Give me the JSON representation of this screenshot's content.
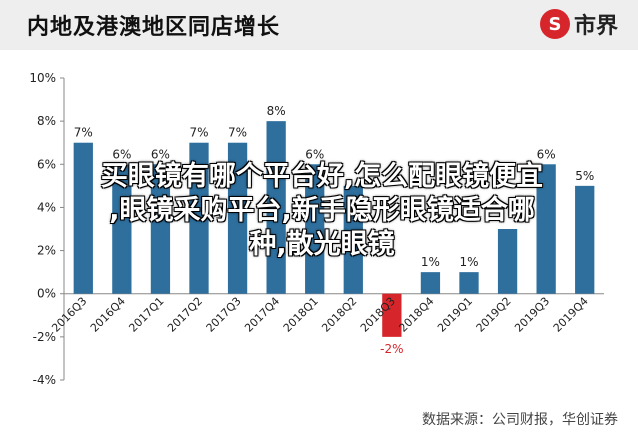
{
  "header": {
    "title": "内地及港澳地区同店增长",
    "logo_mark": "S",
    "logo_text": "市界"
  },
  "overlay_text": {
    "line1": "买眼镜有哪个平台好,怎么配眼镜便宜",
    "line2": ",眼镜采购平台,新手隐形眼镜适合哪",
    "line3": "种,散光眼镜"
  },
  "source_text": "数据来源：公司财报，华创证券",
  "colors": {
    "bar": "#2e6f9e",
    "negative_bar": "#d7262b",
    "negative_label": "#d7262b",
    "grid": "#dddddd"
  },
  "chart_data": {
    "type": "bar",
    "title": "内地及港澳地区同店增长",
    "categories": [
      "2016Q3",
      "2016Q4",
      "2017Q1",
      "2017Q2",
      "2017Q3",
      "2017Q4",
      "2018Q1",
      "2018Q2",
      "2018Q3",
      "2018Q4",
      "2019Q1",
      "2019Q2",
      "2019Q3",
      "2019Q4"
    ],
    "values": [
      7,
      6,
      6,
      7,
      7,
      8,
      6,
      5,
      -2,
      1,
      1,
      3,
      6,
      5
    ],
    "data_labels": [
      "7%",
      "6%",
      "6%",
      "7%",
      "7%",
      "8%",
      "6%",
      "",
      "-2%",
      "1%",
      "1%",
      "",
      "6%",
      "5%"
    ],
    "y_ticks": [
      "10%",
      "8%",
      "6%",
      "4%",
      "2%",
      "0%",
      "-2%",
      "-4%"
    ],
    "ylim": [
      -4,
      10
    ],
    "grid": false,
    "legend": "none"
  }
}
